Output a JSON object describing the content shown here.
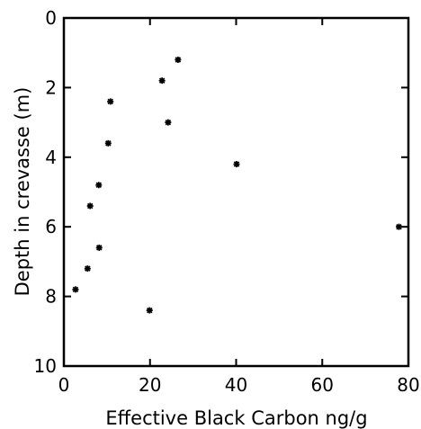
{
  "chart_data": {
    "type": "scatter",
    "title": "",
    "xlabel": "Effective Black Carbon ng/g",
    "ylabel": "Depth in crevasse (m)",
    "xlim": [
      0,
      80
    ],
    "ylim": [
      10,
      0
    ],
    "y_inverted": true,
    "grid": false,
    "marker": "asterisk",
    "marker_color": "#000000",
    "x_ticks": [
      0,
      20,
      40,
      60,
      80
    ],
    "y_ticks": [
      0,
      2,
      4,
      6,
      8,
      10
    ],
    "series": [
      {
        "points": [
          {
            "x": 26.5,
            "y": 1.2
          },
          {
            "x": 22.8,
            "y": 1.8
          },
          {
            "x": 10.8,
            "y": 2.4
          },
          {
            "x": 24.2,
            "y": 3.0
          },
          {
            "x": 10.3,
            "y": 3.6
          },
          {
            "x": 40.1,
            "y": 4.2
          },
          {
            "x": 8.1,
            "y": 4.8
          },
          {
            "x": 6.1,
            "y": 5.4
          },
          {
            "x": 77.8,
            "y": 6.0
          },
          {
            "x": 8.2,
            "y": 6.6
          },
          {
            "x": 5.5,
            "y": 7.2
          },
          {
            "x": 2.7,
            "y": 7.8
          },
          {
            "x": 19.9,
            "y": 8.4
          }
        ]
      }
    ]
  }
}
